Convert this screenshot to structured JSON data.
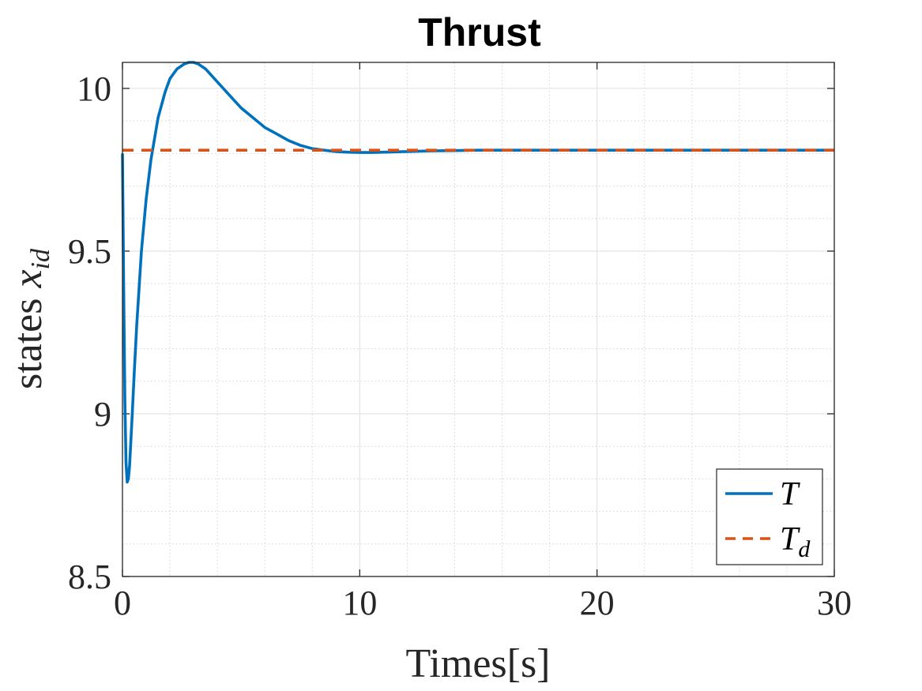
{
  "chart_data": {
    "type": "line",
    "title": "Thrust",
    "xlabel": "Times[s]",
    "ylabel_text": "states ",
    "ylabel_math": "x",
    "ylabel_sub": "id",
    "xlim": [
      0,
      30
    ],
    "ylim": [
      8.5,
      10.08
    ],
    "xticks": [
      0,
      10,
      20,
      30
    ],
    "xtick_labels": [
      "0",
      "10",
      "20",
      "30"
    ],
    "yticks": [
      8.5,
      9,
      9.5,
      10
    ],
    "ytick_labels": [
      "8.5",
      "9",
      "9.5",
      "10"
    ],
    "grid": true,
    "minor_grid": true,
    "legend_placement": "bottom-right",
    "series": [
      {
        "name": "T",
        "label_main": "T",
        "label_sub": "",
        "color": "#0072BD",
        "style": "solid",
        "x": [
          0,
          0.05,
          0.1,
          0.15,
          0.2,
          0.25,
          0.3,
          0.4,
          0.5,
          0.6,
          0.8,
          1.0,
          1.2,
          1.5,
          1.8,
          2.0,
          2.3,
          2.6,
          2.8,
          3.0,
          3.2,
          3.5,
          4.0,
          4.5,
          5.0,
          5.5,
          6.0,
          6.5,
          7.0,
          7.5,
          8.0,
          8.5,
          9.0,
          9.5,
          10.0,
          10.5,
          11.0,
          12.0,
          13.0,
          14.0,
          15.0,
          17.0,
          20.0,
          25.0,
          30.0
        ],
        "y": [
          9.8,
          9.4,
          9.05,
          8.85,
          8.79,
          8.8,
          8.84,
          8.98,
          9.13,
          9.27,
          9.5,
          9.66,
          9.78,
          9.91,
          9.99,
          10.03,
          10.06,
          10.075,
          10.08,
          10.08,
          10.075,
          10.06,
          10.02,
          9.98,
          9.94,
          9.91,
          9.88,
          9.86,
          9.84,
          9.825,
          9.815,
          9.81,
          9.806,
          9.804,
          9.803,
          9.803,
          9.804,
          9.806,
          9.808,
          9.809,
          9.81,
          9.81,
          9.81,
          9.81,
          9.81
        ]
      },
      {
        "name": "T_d",
        "label_main": "T",
        "label_sub": "d",
        "color": "#D95319",
        "style": "dashed",
        "x": [
          0,
          30
        ],
        "y": [
          9.81,
          9.81
        ]
      }
    ]
  }
}
